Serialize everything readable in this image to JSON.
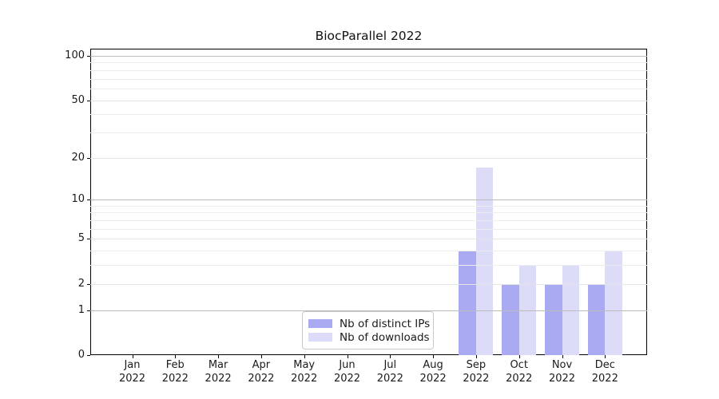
{
  "title": "BiocParallel 2022",
  "colors": {
    "bar_distinct_ips": "#aaaaf2",
    "bar_downloads": "#dcdcf8",
    "grid_major": "#bbbbbb",
    "grid_labeled": "#e4e4e4",
    "grid_minor": "#ededed",
    "axis": "#000000",
    "text": "#1a1a1a",
    "legend_border": "#c9c9c9"
  },
  "chart_data": {
    "type": "bar",
    "title": "BiocParallel 2022",
    "categories": [
      {
        "month": "Jan",
        "year": "2022"
      },
      {
        "month": "Feb",
        "year": "2022"
      },
      {
        "month": "Mar",
        "year": "2022"
      },
      {
        "month": "Apr",
        "year": "2022"
      },
      {
        "month": "May",
        "year": "2022"
      },
      {
        "month": "Jun",
        "year": "2022"
      },
      {
        "month": "Jul",
        "year": "2022"
      },
      {
        "month": "Aug",
        "year": "2022"
      },
      {
        "month": "Sep",
        "year": "2022"
      },
      {
        "month": "Oct",
        "year": "2022"
      },
      {
        "month": "Nov",
        "year": "2022"
      },
      {
        "month": "Dec",
        "year": "2022"
      }
    ],
    "series": [
      {
        "name": "Nb of distinct IPs",
        "color": "#aaaaf2",
        "values": [
          0,
          0,
          0,
          0,
          0,
          0,
          0,
          0,
          4,
          2,
          2,
          2
        ]
      },
      {
        "name": "Nb of downloads",
        "color": "#dcdcf8",
        "values": [
          0,
          0,
          0,
          0,
          0,
          0,
          0,
          0,
          17,
          3,
          3,
          4
        ]
      }
    ],
    "y_axis": {
      "scale": "log1p",
      "ylim": [
        0,
        112
      ],
      "tick_values": [
        0,
        1,
        2,
        5,
        10,
        20,
        50,
        100
      ],
      "tick_labels": [
        "0",
        "1",
        "2",
        "5",
        "10",
        "20",
        "50",
        "100"
      ],
      "major_grid_values": [
        1,
        10,
        100
      ],
      "minor_grid_values": [
        3,
        4,
        6,
        7,
        8,
        9,
        30,
        40,
        60,
        70,
        80,
        90
      ]
    },
    "xlabel": "",
    "ylabel": "",
    "grid": true,
    "legend_position": "bottom-center"
  }
}
